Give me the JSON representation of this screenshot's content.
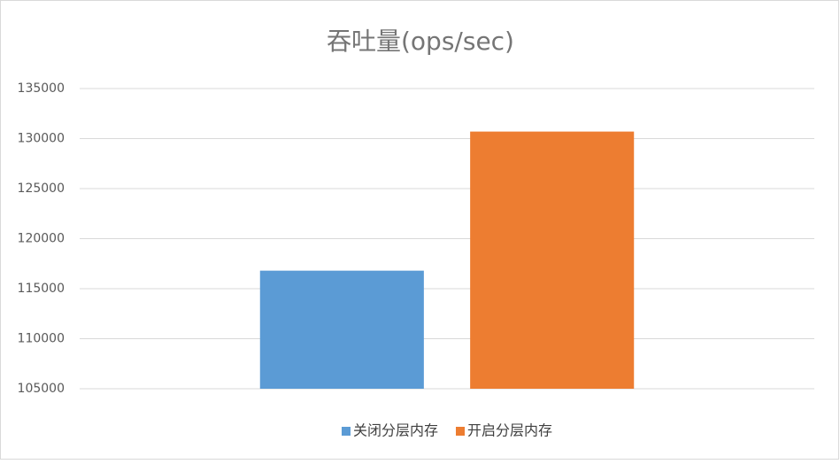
{
  "chart_data": {
    "type": "bar",
    "title": "吞吐量(ops/sec)",
    "categories": [
      null
    ],
    "series": [
      {
        "name": "关闭分层内存",
        "color": "#5b9bd5",
        "values": [
          116800
        ]
      },
      {
        "name": "开启分层内存",
        "color": "#ed7d31",
        "values": [
          130700
        ]
      }
    ],
    "ylim": [
      105000,
      135000
    ],
    "yticks": [
      105000,
      110000,
      115000,
      120000,
      125000,
      130000,
      135000
    ],
    "grid": true,
    "legend": "bottom"
  }
}
